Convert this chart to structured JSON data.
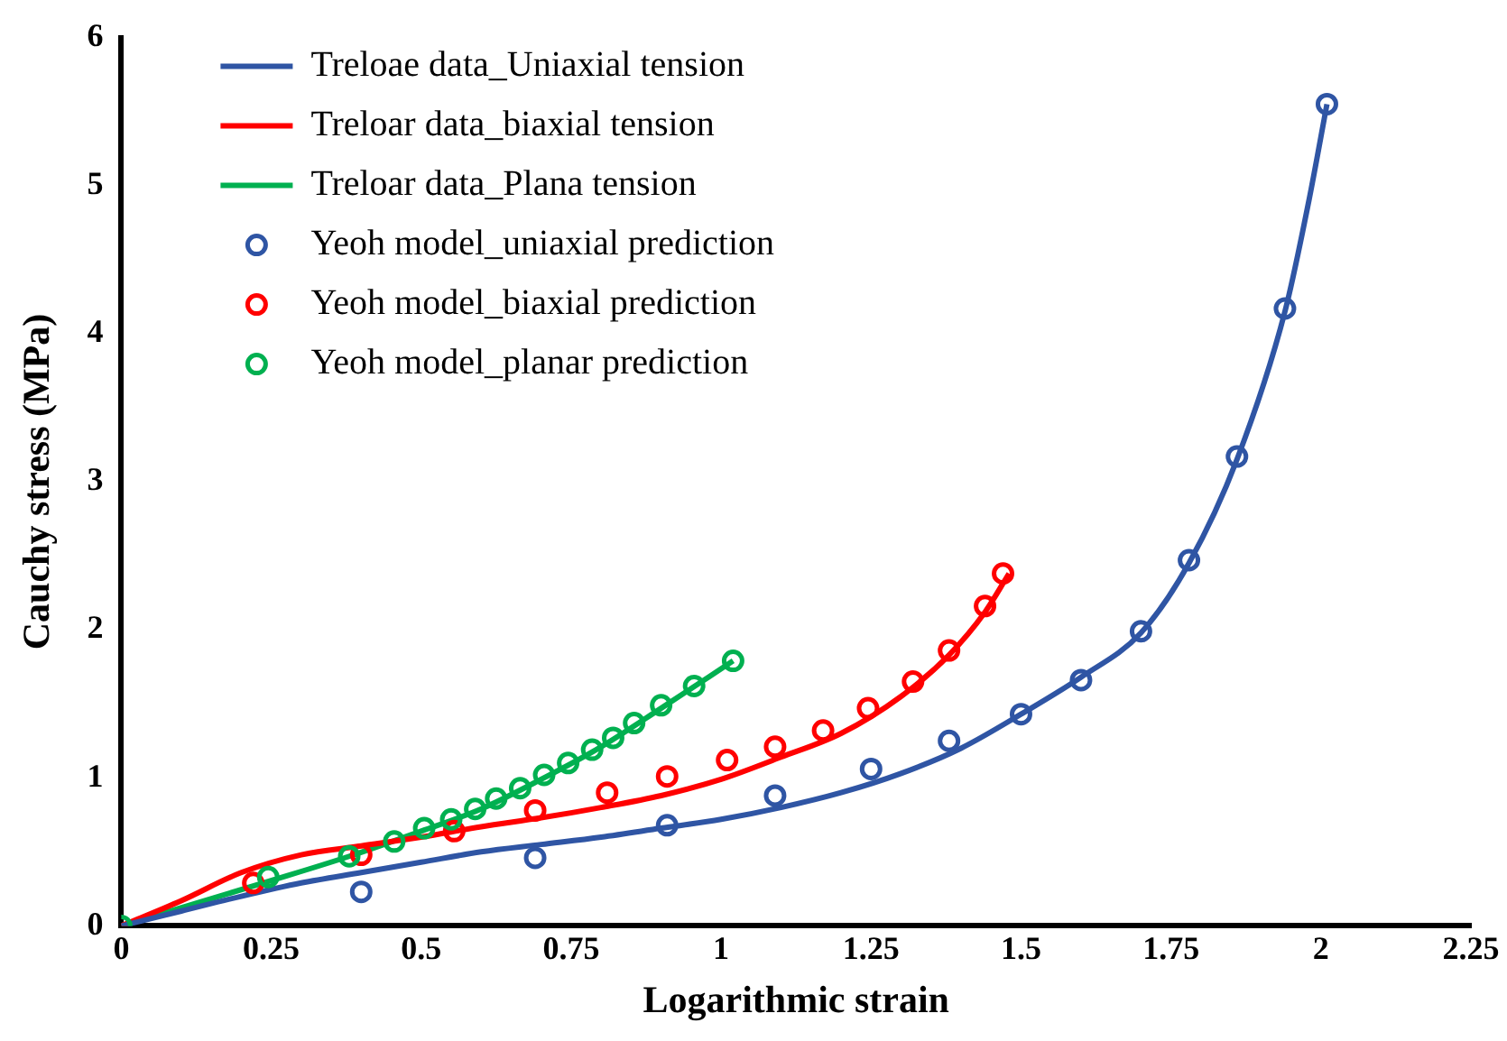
{
  "chart_data": {
    "type": "line",
    "xlabel": "Logarithmic strain",
    "ylabel": "Cauchy stress (MPa)",
    "xlim": [
      0,
      2.25
    ],
    "xticks": [
      0,
      0.25,
      0.5,
      0.75,
      1,
      1.25,
      1.5,
      1.75,
      2,
      2.25
    ],
    "ylim": [
      0,
      6
    ],
    "yticks": [
      0,
      1,
      2,
      3,
      4,
      5,
      6
    ],
    "grid": false,
    "legend": "top left",
    "series": [
      {
        "name": "Treloae data_Uniaxial tension",
        "type": "line",
        "marker": "none",
        "color": "#2f55a4",
        "x": [
          0,
          0.1,
          0.2,
          0.3,
          0.4,
          0.5,
          0.6,
          0.7,
          0.8,
          0.9,
          1.0,
          1.1,
          1.2,
          1.3,
          1.4,
          1.5,
          1.6,
          1.7,
          1.78,
          1.86,
          1.94,
          1.98,
          2.01
        ],
        "values": [
          0,
          0.1,
          0.2,
          0.29,
          0.36,
          0.43,
          0.5,
          0.55,
          0.6,
          0.66,
          0.72,
          0.8,
          0.9,
          1.03,
          1.2,
          1.43,
          1.68,
          1.98,
          2.45,
          3.15,
          4.15,
          4.9,
          5.55
        ]
      },
      {
        "name": "Treloar data_biaxial tension",
        "type": "line",
        "marker": "none",
        "color": "#ff0000",
        "x": [
          0,
          0.1,
          0.2,
          0.3,
          0.4,
          0.5,
          0.6,
          0.7,
          0.8,
          0.9,
          1.0,
          1.1,
          1.2,
          1.3,
          1.38,
          1.44,
          1.48
        ],
        "values": [
          0,
          0.17,
          0.36,
          0.48,
          0.54,
          0.6,
          0.67,
          0.73,
          0.8,
          0.88,
          0.99,
          1.14,
          1.3,
          1.55,
          1.83,
          2.12,
          2.38
        ]
      },
      {
        "name": "Treloar data_Plana tension",
        "type": "line",
        "marker": "none",
        "color": "#00b050",
        "x": [
          0,
          0.245,
          0.38,
          0.5,
          0.6,
          0.7,
          0.8,
          0.9,
          1.02
        ],
        "values": [
          0,
          0.3,
          0.47,
          0.64,
          0.79,
          0.99,
          1.21,
          1.47,
          1.79
        ]
      },
      {
        "name": "Yeoh model_uniaxial prediction",
        "type": "scatter",
        "marker": "circle",
        "color": "#2f55a4",
        "x": [
          0.4,
          0.69,
          0.91,
          1.09,
          1.25,
          1.38,
          1.5,
          1.6,
          1.7,
          1.78,
          1.86,
          1.94,
          2.01
        ],
        "values": [
          0.23,
          0.46,
          0.68,
          0.88,
          1.06,
          1.25,
          1.43,
          1.66,
          1.99,
          2.47,
          3.17,
          4.17,
          5.55
        ]
      },
      {
        "name": "Yeoh model_biaxial prediction",
        "type": "scatter",
        "marker": "circle",
        "color": "#ff0000",
        "x": [
          0.22,
          0.4,
          0.555,
          0.69,
          0.81,
          0.91,
          1.01,
          1.09,
          1.17,
          1.245,
          1.32,
          1.38,
          1.44,
          1.47
        ],
        "values": [
          0.29,
          0.48,
          0.64,
          0.78,
          0.9,
          1.01,
          1.12,
          1.21,
          1.32,
          1.47,
          1.65,
          1.86,
          2.16,
          2.38
        ]
      },
      {
        "name": "Yeoh model_planar prediction",
        "type": "scatter",
        "marker": "circle",
        "color": "#00b050",
        "x": [
          0,
          0.245,
          0.38,
          0.455,
          0.505,
          0.55,
          0.59,
          0.625,
          0.665,
          0.705,
          0.745,
          0.785,
          0.82,
          0.855,
          0.9,
          0.955,
          1.02
        ],
        "values": [
          0,
          0.33,
          0.47,
          0.57,
          0.66,
          0.72,
          0.79,
          0.86,
          0.93,
          1.02,
          1.1,
          1.19,
          1.27,
          1.37,
          1.49,
          1.62,
          1.79
        ]
      }
    ]
  }
}
